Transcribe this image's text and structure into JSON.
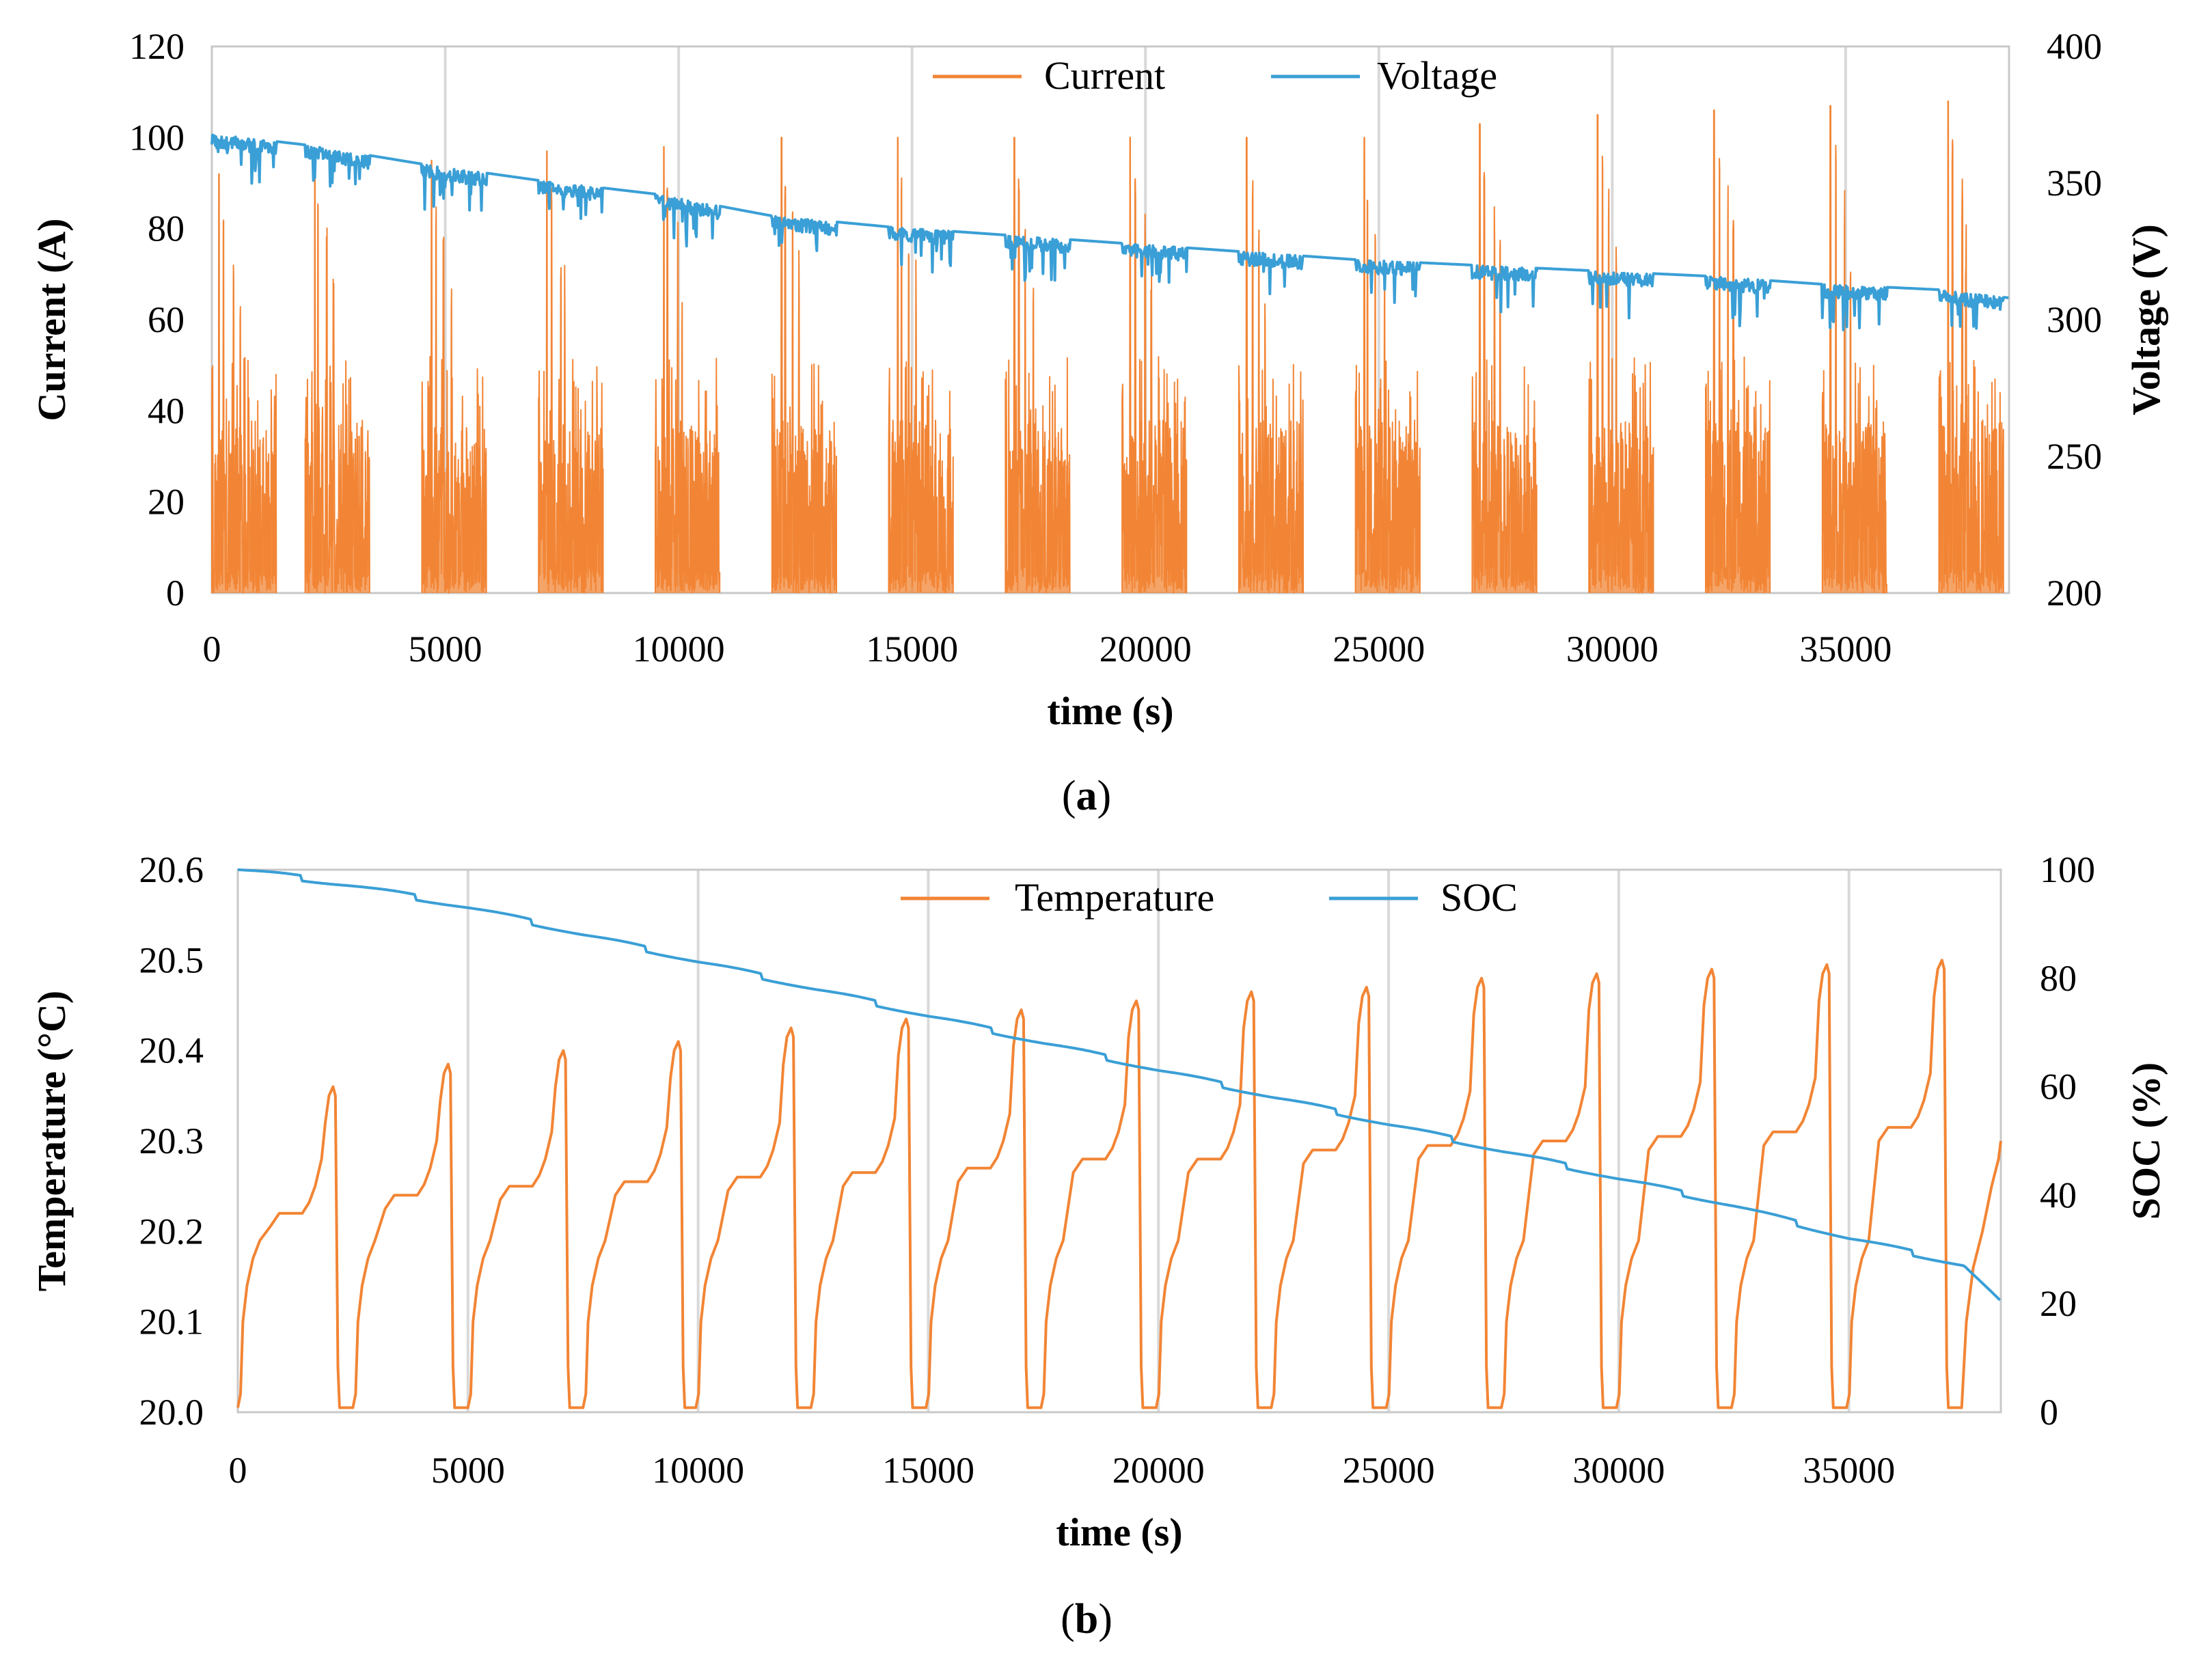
{
  "chart_data": [
    {
      "panel": "a",
      "type": "line",
      "caption": {
        "open": "(",
        "letter": "a",
        "close": ")"
      },
      "xlabel": "time (s)",
      "ylabel_left": "Current (A)",
      "ylabel_right": "Voltage (V)",
      "xlim": [
        0,
        38500
      ],
      "ylim_left": [
        0,
        120
      ],
      "ylim_right": [
        200,
        400
      ],
      "xticks": [
        0,
        5000,
        10000,
        15000,
        20000,
        25000,
        30000,
        35000
      ],
      "xtick_labels": [
        "0",
        "5000",
        "10000",
        "15000",
        "20000",
        "25000",
        "30000",
        "35000"
      ],
      "yticks_left": [
        0,
        20,
        40,
        60,
        80,
        100,
        120
      ],
      "ytick_labels_left": [
        "0",
        "20",
        "40",
        "60",
        "80",
        "100",
        "120"
      ],
      "yticks_right": [
        200,
        250,
        300,
        350,
        400
      ],
      "ytick_labels_right": [
        "200",
        "250",
        "300",
        "350",
        "400"
      ],
      "grid": "vertical",
      "legend_position": "top-right",
      "colors": {
        "current": "#f28535",
        "voltage": "#3a9fd6",
        "grid": "#d9d9d9"
      },
      "legend": [
        {
          "name": "Current",
          "color": "#f28535"
        },
        {
          "name": "Voltage",
          "color": "#3a9fd6"
        }
      ],
      "cycle_period_s": 2490,
      "cycle_active_s": 1380,
      "series": [
        {
          "name": "Current",
          "axis": "left",
          "cycle_starts": [
            0,
            2000,
            4500,
            7000,
            9500,
            12000,
            14500,
            17000,
            19500,
            22000,
            24500,
            27000,
            29500,
            32000,
            34500,
            37000
          ],
          "cycle_peak_A": [
            92,
            97,
            95,
            97,
            98,
            100,
            100,
            100,
            100,
            100,
            100,
            103,
            105,
            106,
            107,
            108
          ],
          "typical_range_A": [
            0,
            45
          ]
        },
        {
          "name": "Voltage",
          "axis": "right",
          "x": [
            0,
            2000,
            4500,
            7000,
            9500,
            12000,
            14500,
            17000,
            19500,
            22000,
            24500,
            27000,
            29500,
            32000,
            34500,
            37000,
            38500
          ],
          "y": [
            368,
            364,
            357,
            351,
            346,
            338,
            334,
            331,
            328,
            325,
            322,
            320,
            318,
            316,
            313,
            311,
            308
          ],
          "min_dip_V": 296
        }
      ]
    },
    {
      "panel": "b",
      "type": "line",
      "caption": {
        "open": "(",
        "letter": "b",
        "close": ")"
      },
      "xlabel": "time (s)",
      "ylabel_left": "Temperature (°C)",
      "ylabel_right": "SOC (%)",
      "xlim": [
        0,
        38300
      ],
      "ylim_left": [
        20.0,
        20.6
      ],
      "ylim_right": [
        0,
        100
      ],
      "xticks": [
        0,
        5000,
        10000,
        15000,
        20000,
        25000,
        30000,
        35000
      ],
      "xtick_labels": [
        "0",
        "5000",
        "10000",
        "15000",
        "20000",
        "25000",
        "30000",
        "35000"
      ],
      "yticks_left": [
        20.0,
        20.1,
        20.2,
        20.3,
        20.4,
        20.5,
        20.6
      ],
      "ytick_labels_left": [
        "20.0",
        "20.1",
        "20.2",
        "20.3",
        "20.4",
        "20.5",
        "20.6"
      ],
      "yticks_right": [
        0,
        20,
        40,
        60,
        80,
        100
      ],
      "ytick_labels_right": [
        "0",
        "20",
        "40",
        "60",
        "80",
        "100"
      ],
      "grid": "vertical",
      "legend_position": "top-right",
      "colors": {
        "temperature": "#f28535",
        "soc": "#3a9fd6",
        "grid": "#d9d9d9"
      },
      "legend": [
        {
          "name": "Temperature",
          "color": "#f28535"
        },
        {
          "name": "SOC",
          "color": "#3a9fd6"
        }
      ],
      "series": [
        {
          "name": "Temperature",
          "axis": "left",
          "cycle_starts": [
            0,
            2500,
            5000,
            7500,
            9950,
            12450,
            14950,
            17450,
            19950,
            22450,
            24950,
            27450,
            29950,
            32450,
            34950,
            37450
          ],
          "plateau_C": [
            20.22,
            20.24,
            20.25,
            20.255,
            20.26,
            20.265,
            20.27,
            20.28,
            20.28,
            20.29,
            20.295,
            20.3,
            20.305,
            20.31,
            20.315,
            20.32
          ],
          "peak_C": [
            20.36,
            20.385,
            20.4,
            20.41,
            20.425,
            20.435,
            20.445,
            20.455,
            20.465,
            20.47,
            20.48,
            20.485,
            20.49,
            20.495,
            20.5,
            20.51
          ],
          "end_value_C": 20.3
        },
        {
          "name": "SOC",
          "axis": "right",
          "x": [
            0,
            2500,
            5000,
            7500,
            10000,
            12500,
            15000,
            17500,
            20000,
            22500,
            25000,
            27500,
            30000,
            32500,
            35000,
            37500,
            38300
          ],
          "y": [
            100,
            97,
            93,
            88,
            83,
            78,
            73,
            68,
            63,
            58,
            53,
            48,
            43,
            38,
            32,
            27,
            20
          ]
        }
      ]
    }
  ]
}
